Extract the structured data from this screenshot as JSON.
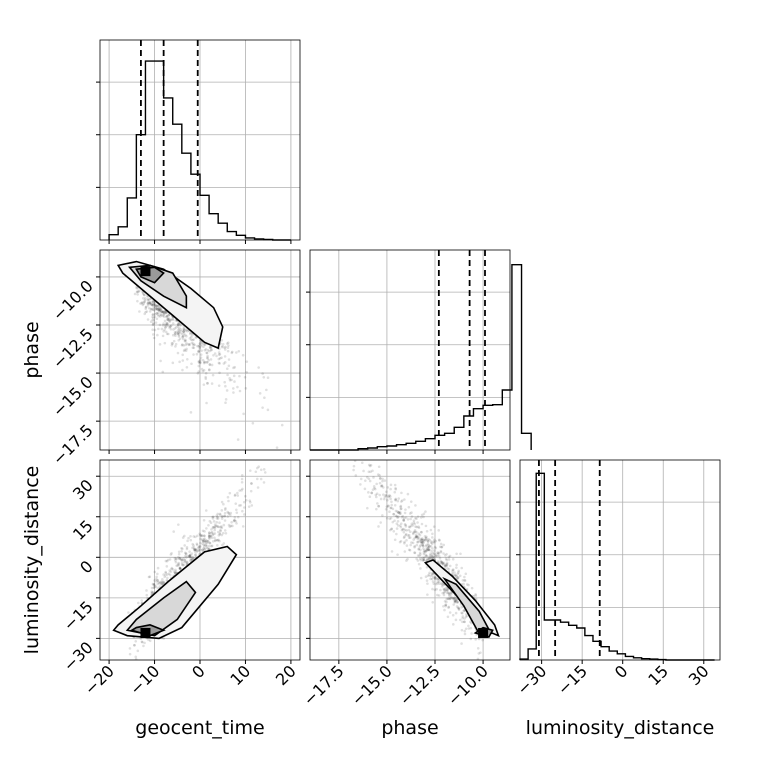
{
  "chart_data": {
    "type": "corner",
    "parameters": [
      "geocent_time",
      "phase",
      "luminosity_distance"
    ],
    "grid": true,
    "quantile_lines": "dashed",
    "diagonal_histograms": [
      {
        "parameter": "geocent_time",
        "xlim": [
          -22,
          22
        ],
        "bin_width": 2,
        "bin_start": -20,
        "counts": [
          0.1,
          0.25,
          0.8,
          2.0,
          3.4,
          3.4,
          2.7,
          2.2,
          1.65,
          1.25,
          0.85,
          0.5,
          0.32,
          0.16,
          0.09,
          0.04,
          0.02,
          0.01,
          0.0,
          0.0
        ],
        "ylim": [
          0,
          3.8
        ],
        "quantiles": [
          -13,
          -8,
          -0.5
        ]
      },
      {
        "parameter": "phase",
        "xlim": [
          -19,
          -8.6
        ],
        "bin_width": 0.5,
        "bin_start": -19.0,
        "counts": [
          0,
          0,
          0,
          0,
          0,
          0.02,
          0.03,
          0.05,
          0.06,
          0.08,
          0.1,
          0.13,
          0.17,
          0.22,
          0.25,
          0.34,
          0.51,
          0.62,
          0.67,
          0.68,
          0.9,
          2.78,
          0.25
        ],
        "ylim": [
          0,
          3.0
        ],
        "quantiles": [
          -12.3,
          -10.7,
          -9.9
        ]
      },
      {
        "parameter": "luminosity_distance",
        "xlim": [
          -38,
          36
        ],
        "bin_width": 3,
        "bin_start": -38,
        "counts": [
          0.02,
          0.25,
          4.2,
          0.9,
          0.9,
          0.85,
          0.78,
          0.72,
          0.55,
          0.42,
          0.3,
          0.2,
          0.14,
          0.08,
          0.05,
          0.03,
          0.02,
          0.01,
          0.0,
          0.0,
          0.0,
          0.0,
          0.0,
          0.0
        ],
        "ylim": [
          0,
          4.5
        ],
        "quantiles": [
          -31,
          -25,
          -8.5
        ]
      }
    ],
    "axes": {
      "geocent_time": {
        "lim": [
          -22,
          22
        ],
        "ticks": [
          -20,
          -10,
          0,
          10,
          20
        ],
        "tick_labels": [
          "−20",
          "−10",
          "0",
          "10",
          "20"
        ]
      },
      "phase": {
        "lim": [
          -19,
          -8.6
        ],
        "ticks": [
          -17.5,
          -15.0,
          -12.5,
          -10.0
        ],
        "tick_labels": [
          "−17.5",
          "−15.0",
          "−12.5",
          "−10.0"
        ]
      },
      "luminosity_distance": {
        "lim": [
          -38,
          36
        ],
        "ticks": [
          -30,
          -15,
          0,
          15,
          30
        ],
        "tick_labels": [
          "−30",
          "−15",
          "0",
          "15",
          "30"
        ]
      }
    },
    "scatter_panels": [
      {
        "x": "geocent_time",
        "y": "phase",
        "mode": [
          -12,
          -9.7
        ],
        "correlation": "negative"
      },
      {
        "x": "geocent_time",
        "y": "luminosity_distance",
        "mode": [
          -12,
          -28
        ],
        "correlation": "positive"
      },
      {
        "x": "phase",
        "y": "luminosity_distance",
        "mode": [
          -10,
          -28
        ],
        "correlation": "negative"
      }
    ]
  },
  "labels": {
    "x_bottom": [
      "geocent_time",
      "phase",
      "luminosity_distance"
    ],
    "y_left": [
      "phase",
      "luminosity_distance"
    ]
  }
}
